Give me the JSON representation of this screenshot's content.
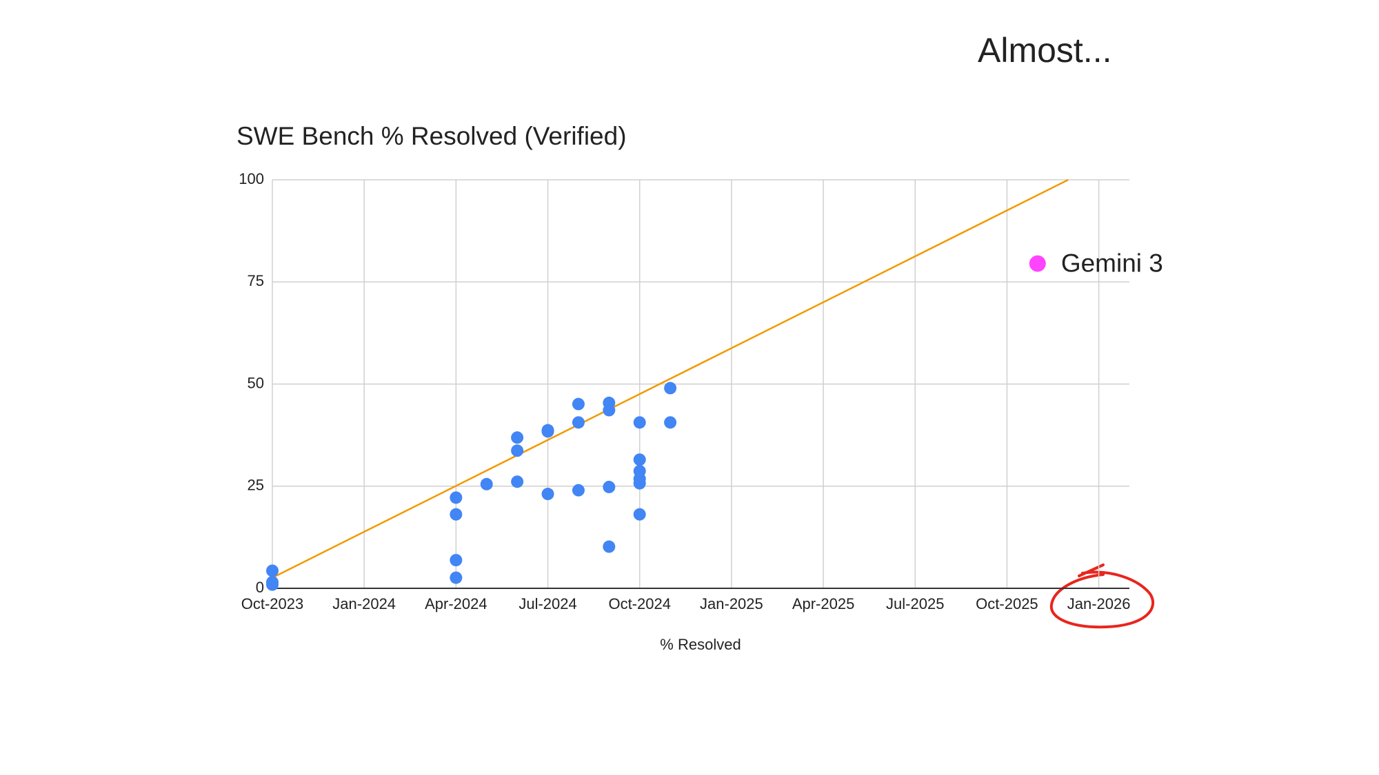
{
  "header": {
    "text": "Almost..."
  },
  "chart_data": {
    "type": "scatter",
    "title": "SWE Bench % Resolved (Verified)",
    "x_label": "% Resolved",
    "grid": true,
    "xlim": [
      "2023-10",
      "2026-02"
    ],
    "ylim": [
      0,
      100
    ],
    "yticks": [
      0,
      25,
      50,
      75,
      100
    ],
    "xticks": [
      {
        "value": "2023-10",
        "label": "Oct-2023"
      },
      {
        "value": "2024-01",
        "label": "Jan-2024"
      },
      {
        "value": "2024-04",
        "label": "Apr-2024"
      },
      {
        "value": "2024-07",
        "label": "Jul-2024"
      },
      {
        "value": "2024-10",
        "label": "Oct-2024"
      },
      {
        "value": "2025-01",
        "label": "Jan-2025"
      },
      {
        "value": "2025-04",
        "label": "Apr-2025"
      },
      {
        "value": "2025-07",
        "label": "Jul-2025"
      },
      {
        "value": "2025-10",
        "label": "Oct-2025"
      },
      {
        "value": "2026-01",
        "label": "Jan-2026"
      }
    ],
    "series": [
      {
        "color": "#4285f4",
        "x": [
          "2023-10",
          "2023-10",
          "2023-10",
          "2024-04",
          "2024-04",
          "2024-04",
          "2024-04",
          "2024-05",
          "2024-06",
          "2024-06",
          "2024-06",
          "2024-07",
          "2024-07",
          "2024-07",
          "2024-08",
          "2024-08",
          "2024-08",
          "2024-09",
          "2024-09",
          "2024-09",
          "2024-09",
          "2024-10",
          "2024-10",
          "2024-10",
          "2024-10",
          "2024-10",
          "2024-10",
          "2024-11",
          "2024-11"
        ],
        "values": [
          4.3,
          1.5,
          0.9,
          22.2,
          18.1,
          6.9,
          2.6,
          25.5,
          26.1,
          36.9,
          33.7,
          38.4,
          38.7,
          23.1,
          24.0,
          40.6,
          45.1,
          24.8,
          10.2,
          43.6,
          45.4,
          25.7,
          28.7,
          18.1,
          31.5,
          26.8,
          40.6,
          40.6,
          49.0
        ]
      }
    ],
    "trendline": {
      "color": "#f29900",
      "x": [
        "2023-10",
        "2025-12"
      ],
      "values": [
        2.6,
        100
      ]
    },
    "annotations": [
      {
        "text": "Gemini 3",
        "color": "#ff44ff",
        "x": "2025-11",
        "y": 79.5
      }
    ]
  }
}
